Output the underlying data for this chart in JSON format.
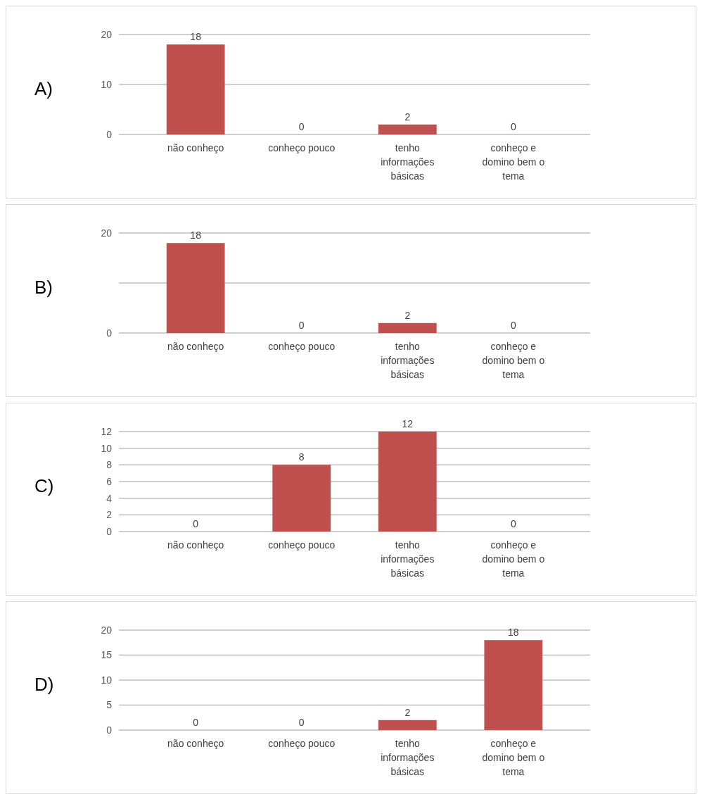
{
  "chart_data": [
    {
      "type": "bar",
      "title": "A)",
      "categories": [
        "não conheço",
        "conheço pouco",
        "tenho informações básicas",
        "conheço e domino bem o tema"
      ],
      "values": [
        18,
        0,
        2,
        0
      ],
      "color": "#c0504d",
      "ylim": [
        0,
        20
      ],
      "yticks": [
        0,
        10,
        20
      ],
      "grid": "y",
      "data_labels": true
    },
    {
      "type": "bar",
      "title": "B)",
      "categories": [
        "não conheço",
        "conheço pouco",
        "tenho informações básicas",
        "conheço e domino bem o tema"
      ],
      "values": [
        18,
        0,
        2,
        0
      ],
      "color": "#c0504d",
      "ylim": [
        0,
        20
      ],
      "yticks": [
        0,
        {
          "value": 10,
          "label": null
        },
        20
      ],
      "grid": "y",
      "data_labels": true
    },
    {
      "type": "bar",
      "title": "C)",
      "categories": [
        "não conheço",
        "conheço pouco",
        "tenho informações básicas",
        "conheço e domino bem o tema"
      ],
      "values": [
        0,
        8,
        12,
        0
      ],
      "color": "#c0504d",
      "ylim": [
        0,
        12
      ],
      "yticks": [
        0,
        2,
        4,
        6,
        8,
        10,
        12
      ],
      "grid": "y",
      "data_labels": true
    },
    {
      "type": "bar",
      "title": "D)",
      "categories": [
        "não conheço",
        "conheço pouco",
        "tenho informações básicas",
        "conheço e domino bem o tema"
      ],
      "values": [
        0,
        0,
        2,
        18
      ],
      "color": "#c0504d",
      "ylim": [
        0,
        20
      ],
      "yticks": [
        0,
        5,
        10,
        15,
        20
      ],
      "grid": "y",
      "data_labels": true
    }
  ]
}
